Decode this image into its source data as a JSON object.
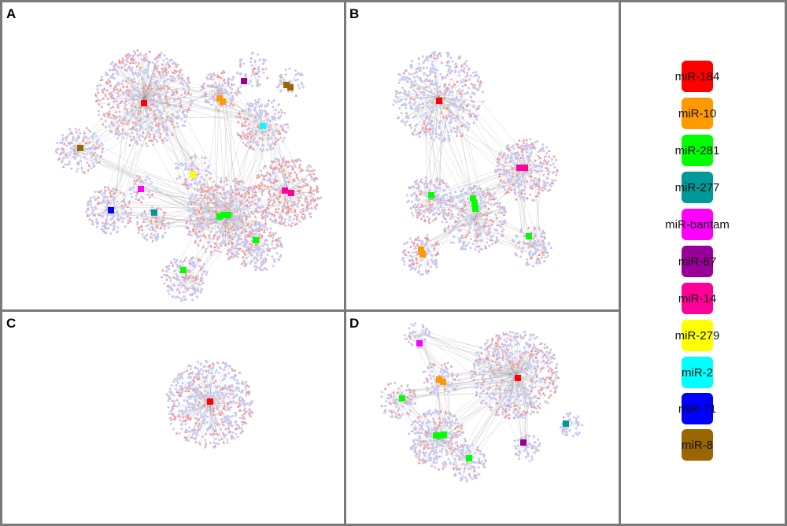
{
  "panels": [
    {
      "label": "A"
    },
    {
      "label": "B"
    },
    {
      "label": "C"
    },
    {
      "label": "D"
    }
  ],
  "legend": [
    {
      "name": "miR-184",
      "color": "#ff0000"
    },
    {
      "name": "miR-10",
      "color": "#ff9900"
    },
    {
      "name": "miR-281",
      "color": "#00ff00"
    },
    {
      "name": "miR-277",
      "color": "#009999"
    },
    {
      "name": "miR-bantam",
      "color": "#ff00ff"
    },
    {
      "name": "miR-87",
      "color": "#990099"
    },
    {
      "name": "miR-14",
      "color": "#ff0099"
    },
    {
      "name": "miR-279",
      "color": "#ffff00"
    },
    {
      "name": "miR-2",
      "color": "#00ffff"
    },
    {
      "name": "miR-71",
      "color": "#0000ff"
    },
    {
      "name": "miR-8",
      "color": "#996600"
    }
  ],
  "node_colors": {
    "target_circle": "#c8c8f0",
    "target_triangle": "#f4968c",
    "edge": "#b4b4b4"
  }
}
